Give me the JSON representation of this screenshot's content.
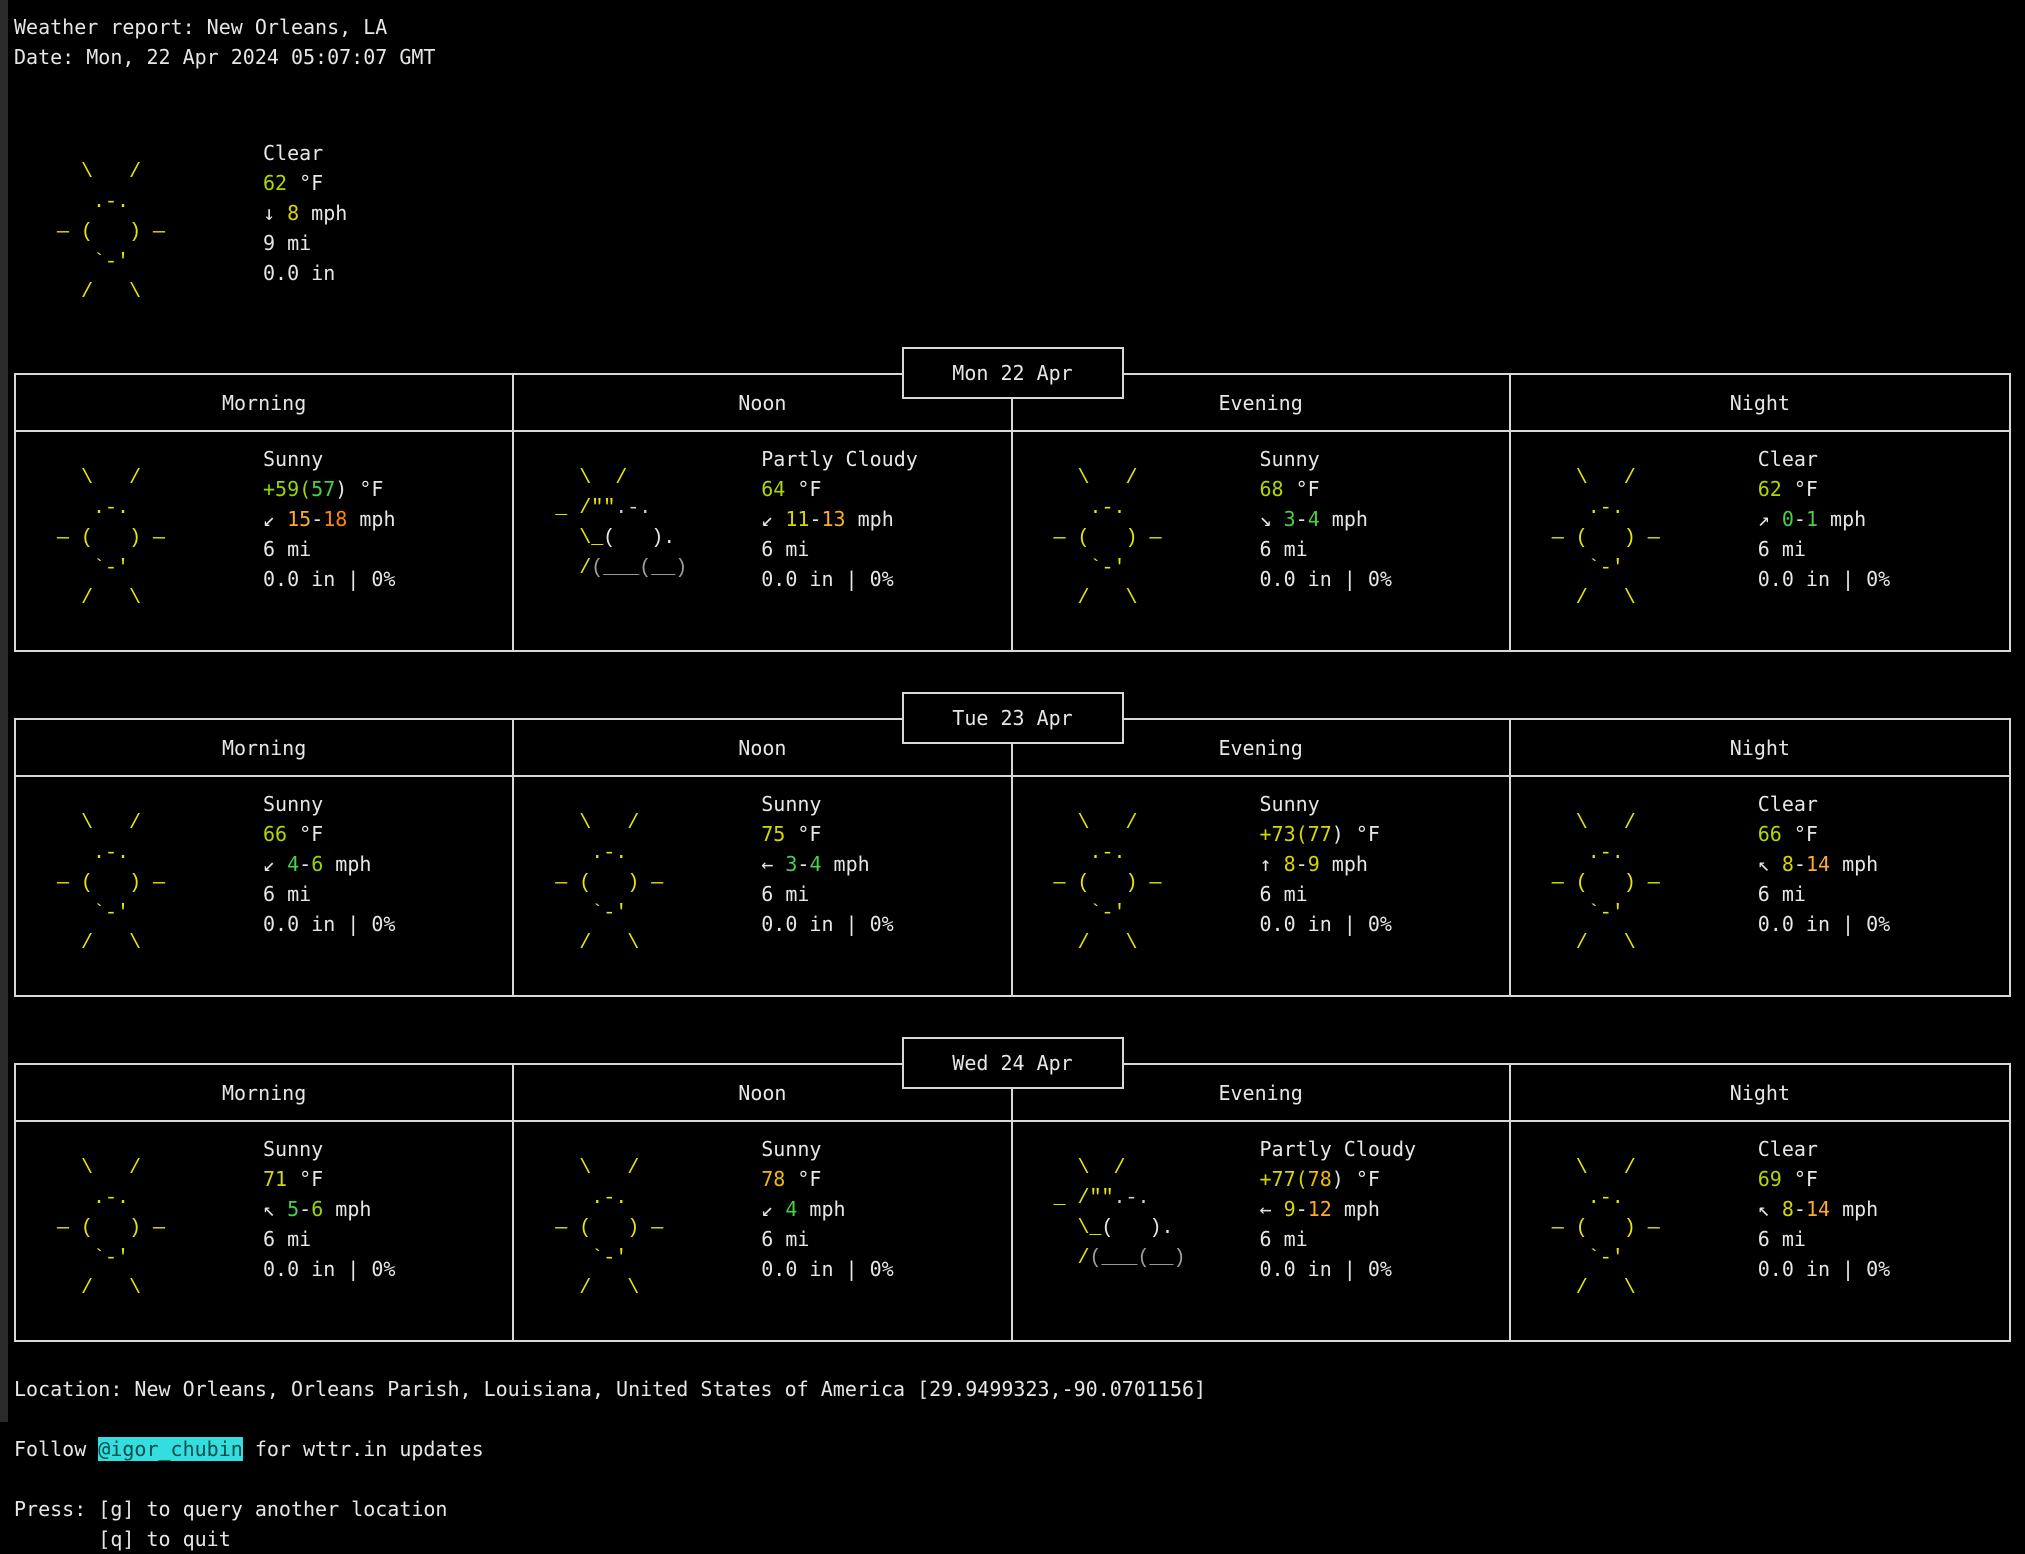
{
  "terminal": {
    "title_line": "Weather report: New Orleans, LA",
    "date_line": "Date: Mon, 22 Apr 2024 05:07:07 GMT"
  },
  "colors": {
    "fg": "#e6e6e6",
    "sun": "#e5e50e",
    "cloud": "#cfcfcf",
    "cloud_dim": "#9e9e9e",
    "green": "#49d049",
    "green_yellow": "#96d700",
    "yellow_green": "#afd700",
    "yellow": "#d7d700",
    "gold": "#eebb00",
    "orange": "#ffab2e",
    "orange_deep": "#ff8700",
    "cyan_bg": "#35dede",
    "cyan_fg": "#0b4b4b"
  },
  "art": {
    "sunny": [
      [
        {
          "t": "  \\   /",
          "c": "sun"
        }
      ],
      [
        {
          "t": "   .-.",
          "c": "sun"
        }
      ],
      [
        {
          "t": "— (   ) —",
          "c": "sun"
        }
      ],
      [
        {
          "t": "   `-'",
          "c": "sun"
        }
      ],
      [
        {
          "t": "  /   \\",
          "c": "sun"
        }
      ]
    ],
    "partly_cloudy": [
      [
        {
          "t": "  \\  /",
          "c": "sun"
        }
      ],
      [
        {
          "t": "_ /\"\"",
          "c": "sun"
        },
        {
          "t": ".-.",
          "c": "cloud"
        }
      ],
      [
        {
          "t": "  \\_",
          "c": "sun"
        },
        {
          "t": "(   ).",
          "c": "fg"
        }
      ],
      [
        {
          "t": "  /",
          "c": "sun"
        },
        {
          "t": "(___(__)",
          "c": "cloud_dim"
        }
      ],
      []
    ]
  },
  "current": {
    "art": "sunny",
    "condition": "Clear",
    "temp": [
      {
        "t": "62",
        "c": "yellow_green"
      },
      {
        "t": " °F",
        "c": "fg"
      }
    ],
    "wind": [
      {
        "t": "↓ ",
        "c": "fg"
      },
      {
        "t": "8",
        "c": "yellow"
      },
      {
        "t": " mph",
        "c": "fg"
      }
    ],
    "visibility": "9 mi",
    "precip": "0.0 in"
  },
  "period_headers": [
    "Morning",
    "Noon",
    "Evening",
    "Night"
  ],
  "days": [
    {
      "date": "Mon 22 Apr",
      "periods": [
        {
          "art": "sunny",
          "condition": "Sunny",
          "temp": [
            {
              "t": "+59(",
              "c": "green_yellow"
            },
            {
              "t": "57",
              "c": "green"
            },
            {
              "t": ") °F",
              "c": "fg"
            }
          ],
          "wind": [
            {
              "t": "↙ ",
              "c": "fg"
            },
            {
              "t": "15",
              "c": "orange"
            },
            {
              "t": "-",
              "c": "fg"
            },
            {
              "t": "18",
              "c": "orange_deep"
            },
            {
              "t": " mph",
              "c": "fg"
            }
          ],
          "visibility": "6 mi",
          "precip": "0.0 in | 0%"
        },
        {
          "art": "partly_cloudy",
          "condition": "Partly Cloudy",
          "temp": [
            {
              "t": "64",
              "c": "yellow_green"
            },
            {
              "t": " °F",
              "c": "fg"
            }
          ],
          "wind": [
            {
              "t": "↙ ",
              "c": "fg"
            },
            {
              "t": "11",
              "c": "yellow"
            },
            {
              "t": "-",
              "c": "fg"
            },
            {
              "t": "13",
              "c": "orange"
            },
            {
              "t": " mph",
              "c": "fg"
            }
          ],
          "visibility": "6 mi",
          "precip": "0.0 in | 0%"
        },
        {
          "art": "sunny",
          "condition": "Sunny",
          "temp": [
            {
              "t": "68",
              "c": "yellow_green"
            },
            {
              "t": " °F",
              "c": "fg"
            }
          ],
          "wind": [
            {
              "t": "↘ ",
              "c": "fg"
            },
            {
              "t": "3",
              "c": "green"
            },
            {
              "t": "-",
              "c": "fg"
            },
            {
              "t": "4",
              "c": "green"
            },
            {
              "t": " mph",
              "c": "fg"
            }
          ],
          "visibility": "6 mi",
          "precip": "0.0 in | 0%"
        },
        {
          "art": "sunny",
          "condition": "Clear",
          "temp": [
            {
              "t": "62",
              "c": "yellow_green"
            },
            {
              "t": " °F",
              "c": "fg"
            }
          ],
          "wind": [
            {
              "t": "↗ ",
              "c": "fg"
            },
            {
              "t": "0",
              "c": "green"
            },
            {
              "t": "-",
              "c": "fg"
            },
            {
              "t": "1",
              "c": "green"
            },
            {
              "t": " mph",
              "c": "fg"
            }
          ],
          "visibility": "6 mi",
          "precip": "0.0 in | 0%"
        }
      ]
    },
    {
      "date": "Tue 23 Apr",
      "periods": [
        {
          "art": "sunny",
          "condition": "Sunny",
          "temp": [
            {
              "t": "66",
              "c": "yellow_green"
            },
            {
              "t": " °F",
              "c": "fg"
            }
          ],
          "wind": [
            {
              "t": "↙ ",
              "c": "fg"
            },
            {
              "t": "4",
              "c": "green"
            },
            {
              "t": "-",
              "c": "fg"
            },
            {
              "t": "6",
              "c": "green_yellow"
            },
            {
              "t": " mph",
              "c": "fg"
            }
          ],
          "visibility": "6 mi",
          "precip": "0.0 in | 0%"
        },
        {
          "art": "sunny",
          "condition": "Sunny",
          "temp": [
            {
              "t": "75",
              "c": "yellow"
            },
            {
              "t": " °F",
              "c": "fg"
            }
          ],
          "wind": [
            {
              "t": "← ",
              "c": "fg"
            },
            {
              "t": "3",
              "c": "green"
            },
            {
              "t": "-",
              "c": "fg"
            },
            {
              "t": "4",
              "c": "green"
            },
            {
              "t": " mph",
              "c": "fg"
            }
          ],
          "visibility": "6 mi",
          "precip": "0.0 in | 0%"
        },
        {
          "art": "sunny",
          "condition": "Sunny",
          "temp": [
            {
              "t": "+73(",
              "c": "yellow"
            },
            {
              "t": "77",
              "c": "yellow"
            },
            {
              "t": ") °F",
              "c": "fg"
            }
          ],
          "wind": [
            {
              "t": "↑ ",
              "c": "fg"
            },
            {
              "t": "8",
              "c": "yellow"
            },
            {
              "t": "-",
              "c": "fg"
            },
            {
              "t": "9",
              "c": "yellow"
            },
            {
              "t": " mph",
              "c": "fg"
            }
          ],
          "visibility": "6 mi",
          "precip": "0.0 in | 0%"
        },
        {
          "art": "sunny",
          "condition": "Clear",
          "temp": [
            {
              "t": "66",
              "c": "yellow_green"
            },
            {
              "t": " °F",
              "c": "fg"
            }
          ],
          "wind": [
            {
              "t": "↖ ",
              "c": "fg"
            },
            {
              "t": "8",
              "c": "yellow"
            },
            {
              "t": "-",
              "c": "fg"
            },
            {
              "t": "14",
              "c": "orange"
            },
            {
              "t": " mph",
              "c": "fg"
            }
          ],
          "visibility": "6 mi",
          "precip": "0.0 in | 0%"
        }
      ]
    },
    {
      "date": "Wed 24 Apr",
      "periods": [
        {
          "art": "sunny",
          "condition": "Sunny",
          "temp": [
            {
              "t": "71",
              "c": "yellow"
            },
            {
              "t": " °F",
              "c": "fg"
            }
          ],
          "wind": [
            {
              "t": "↖ ",
              "c": "fg"
            },
            {
              "t": "5",
              "c": "green"
            },
            {
              "t": "-",
              "c": "fg"
            },
            {
              "t": "6",
              "c": "green_yellow"
            },
            {
              "t": " mph",
              "c": "fg"
            }
          ],
          "visibility": "6 mi",
          "precip": "0.0 in | 0%"
        },
        {
          "art": "sunny",
          "condition": "Sunny",
          "temp": [
            {
              "t": "78",
              "c": "gold"
            },
            {
              "t": " °F",
              "c": "fg"
            }
          ],
          "wind": [
            {
              "t": "↙ ",
              "c": "fg"
            },
            {
              "t": "4",
              "c": "green"
            },
            {
              "t": " mph",
              "c": "fg"
            }
          ],
          "visibility": "6 mi",
          "precip": "0.0 in | 0%"
        },
        {
          "art": "partly_cloudy",
          "condition": "Partly Cloudy",
          "temp": [
            {
              "t": "+77(",
              "c": "yellow"
            },
            {
              "t": "78",
              "c": "gold"
            },
            {
              "t": ") °F",
              "c": "fg"
            }
          ],
          "wind": [
            {
              "t": "← ",
              "c": "fg"
            },
            {
              "t": "9",
              "c": "yellow"
            },
            {
              "t": "-",
              "c": "fg"
            },
            {
              "t": "12",
              "c": "orange"
            },
            {
              "t": " mph",
              "c": "fg"
            }
          ],
          "visibility": "6 mi",
          "precip": "0.0 in | 0%"
        },
        {
          "art": "sunny",
          "condition": "Clear",
          "temp": [
            {
              "t": "69",
              "c": "yellow_green"
            },
            {
              "t": " °F",
              "c": "fg"
            }
          ],
          "wind": [
            {
              "t": "↖ ",
              "c": "fg"
            },
            {
              "t": "8",
              "c": "yellow"
            },
            {
              "t": "-",
              "c": "fg"
            },
            {
              "t": "14",
              "c": "orange"
            },
            {
              "t": " mph",
              "c": "fg"
            }
          ],
          "visibility": "6 mi",
          "precip": "0.0 in | 0%"
        }
      ]
    }
  ],
  "footer": {
    "location_line": "Location: New Orleans, Orleans Parish, Louisiana, United States of America [29.9499323,-90.0701156]",
    "follow_prefix": "Follow ",
    "follow_handle": "@igor_chubin",
    "follow_suffix": " for wttr.in updates",
    "press_line1": "Press: [g] to query another location",
    "press_line2": "       [q] to quit"
  }
}
